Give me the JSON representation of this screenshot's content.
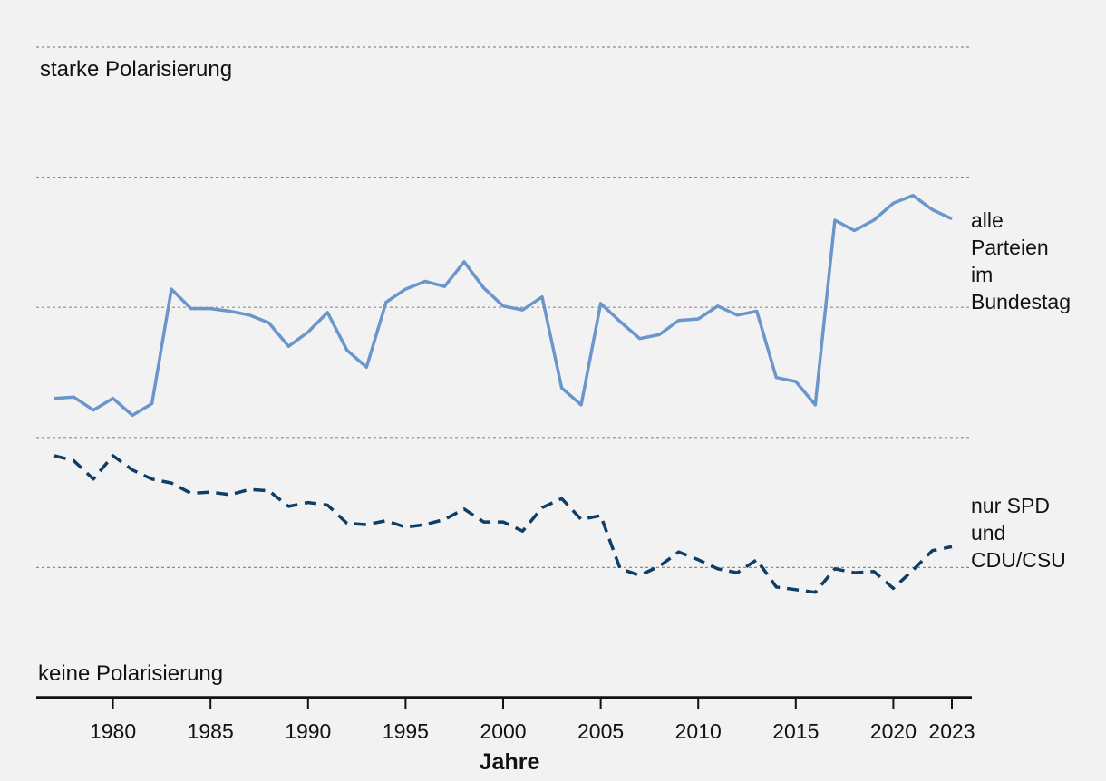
{
  "chart_data": {
    "type": "line",
    "title": "",
    "xlabel": "Jahre",
    "ylabel": "",
    "top_label": "starke Polarisierung",
    "bottom_label": "keine Polarisierung",
    "xlim": [
      1977,
      2023
    ],
    "ylim": [
      0,
      5
    ],
    "grid": true,
    "x_ticks": [
      1980,
      1985,
      1990,
      1995,
      2000,
      2005,
      2010,
      2015,
      2020,
      2023
    ],
    "x": [
      1977,
      1978,
      1979,
      1980,
      1981,
      1982,
      1983,
      1984,
      1985,
      1986,
      1987,
      1988,
      1989,
      1990,
      1991,
      1992,
      1993,
      1994,
      1995,
      1996,
      1997,
      1998,
      1999,
      2000,
      2001,
      2002,
      2003,
      2004,
      2005,
      2006,
      2007,
      2008,
      2009,
      2010,
      2011,
      2012,
      2013,
      2014,
      2015,
      2016,
      2017,
      2018,
      2019,
      2020,
      2021,
      2022,
      2023
    ],
    "series": [
      {
        "name": "alle Parteien im Bundestag",
        "label_lines": [
          "alle",
          "Parteien",
          "im",
          "Bundestag"
        ],
        "color": "#6b96cc",
        "style": "solid",
        "values": [
          2.3,
          2.31,
          2.21,
          2.3,
          2.17,
          2.26,
          3.14,
          2.99,
          2.99,
          2.97,
          2.94,
          2.88,
          2.7,
          2.81,
          2.96,
          2.67,
          2.54,
          3.04,
          3.14,
          3.2,
          3.16,
          3.35,
          3.15,
          3.01,
          2.98,
          3.08,
          2.38,
          2.25,
          3.03,
          2.89,
          2.76,
          2.79,
          2.9,
          2.91,
          3.01,
          2.94,
          2.97,
          2.46,
          2.43,
          2.25,
          3.67,
          3.59,
          3.67,
          3.8,
          3.86,
          3.75,
          3.68
        ]
      },
      {
        "name": "nur SPD und CDU/CSU",
        "label_lines": [
          "nur SPD",
          "und",
          "CDU/CSU"
        ],
        "color": "#0e3d66",
        "style": "dashed",
        "values": [
          1.86,
          1.82,
          1.68,
          1.86,
          1.75,
          1.68,
          1.65,
          1.57,
          1.58,
          1.56,
          1.6,
          1.59,
          1.47,
          1.5,
          1.48,
          1.34,
          1.33,
          1.36,
          1.31,
          1.33,
          1.37,
          1.45,
          1.35,
          1.35,
          1.28,
          1.46,
          1.53,
          1.37,
          1.4,
          0.99,
          0.94,
          1.01,
          1.12,
          1.06,
          0.99,
          0.96,
          1.06,
          0.85,
          0.83,
          0.81,
          0.99,
          0.96,
          0.97,
          0.84,
          0.98,
          1.13,
          1.16
        ]
      }
    ]
  }
}
